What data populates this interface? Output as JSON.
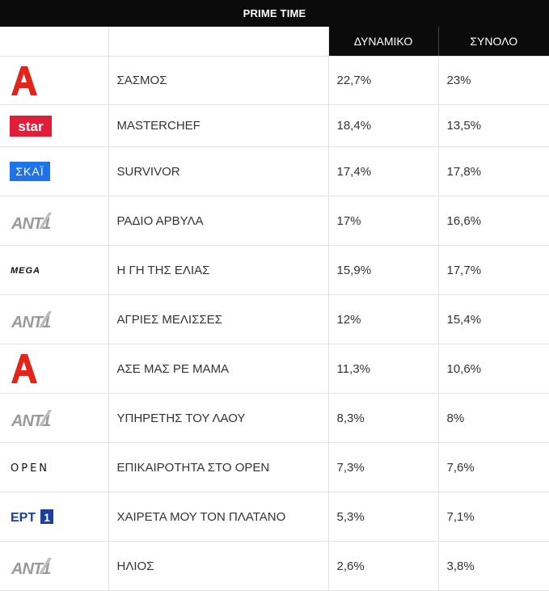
{
  "title": "PRIME TIME",
  "headers": {
    "channel": "",
    "show": "",
    "dynamic": "ΔΥΝΑΜΙΚΟ",
    "total": "ΣΥΝΟΛΟ"
  },
  "rows": [
    {
      "channel": "alpha-logo",
      "logo_text": "",
      "show": "ΣΑΣΜΟΣ",
      "dynamic": "22,7%",
      "total": "23%"
    },
    {
      "channel": "star-logo",
      "logo_text": "star",
      "show": "MASTERCHEF",
      "dynamic": "18,4%",
      "total": "13,5%"
    },
    {
      "channel": "skai-logo",
      "logo_text": "ΣΚΑΪ",
      "show": "SURVIVOR",
      "dynamic": "17,4%",
      "total": "17,8%"
    },
    {
      "channel": "ant1-logo",
      "logo_text": "ANT1",
      "show": "ΡΑΔΙΟ ΑΡΒΥΛΑ",
      "dynamic": "17%",
      "total": "16,6%"
    },
    {
      "channel": "mega-logo",
      "logo_text": "MEGA",
      "show": "Η ΓΗ ΤΗΣ ΕΛΙΑΣ",
      "dynamic": "15,9%",
      "total": "17,7%"
    },
    {
      "channel": "ant1-logo",
      "logo_text": "ANT1",
      "show": "ΑΓΡΙΕΣ ΜΕΛΙΣΣΕΣ",
      "dynamic": "12%",
      "total": "15,4%"
    },
    {
      "channel": "alpha-logo",
      "logo_text": "",
      "show": "ΑΣΕ ΜΑΣ ΡΕ ΜΑΜΑ",
      "dynamic": "11,3%",
      "total": "10,6%"
    },
    {
      "channel": "ant1-logo",
      "logo_text": "ANT1",
      "show": "ΥΠΗΡΕΤΗΣ ΤΟΥ ΛΑΟΥ",
      "dynamic": "8,3%",
      "total": "8%"
    },
    {
      "channel": "open-logo",
      "logo_text": "OPEN",
      "show": "ΕΠΙΚΑΙΡΟΤΗΤΑ ΣΤΟ OPEN",
      "dynamic": "7,3%",
      "total": "7,6%"
    },
    {
      "channel": "ert1-logo",
      "logo_text": "ΕΡΤ",
      "show": "ΧΑΙΡΕΤΑ ΜΟΥ ΤΟΝ ΠΛΑΤΑΝΟ",
      "dynamic": "5,3%",
      "total": "7,1%"
    },
    {
      "channel": "ant1-logo",
      "logo_text": "ANT1",
      "show": "ΗΛΙΟΣ",
      "dynamic": "2,6%",
      "total": "3,8%"
    }
  ],
  "colors": {
    "header_bg": "#0b0b0b",
    "alpha_red": "#e1251b",
    "star_red": "#e01e37",
    "skai_blue": "#1e73e8",
    "ert_blue": "#1d3f9b"
  }
}
